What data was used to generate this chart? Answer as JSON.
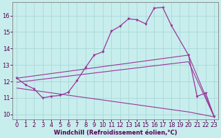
{
  "xlabel": "Windchill (Refroidissement éolien,°C)",
  "background_color": "#c8eded",
  "grid_color": "#a8d8d8",
  "line_color": "#993399",
  "xlim": [
    -0.5,
    23.5
  ],
  "ylim": [
    9.7,
    16.8
  ],
  "yticks": [
    10,
    11,
    12,
    13,
    14,
    15,
    16
  ],
  "xticks": [
    0,
    1,
    2,
    3,
    4,
    5,
    6,
    7,
    8,
    9,
    10,
    11,
    12,
    13,
    14,
    15,
    16,
    17,
    18,
    19,
    20,
    21,
    22,
    23
  ],
  "line1_x": [
    0,
    1,
    2,
    3,
    4,
    5,
    6,
    7,
    8,
    9,
    10,
    11,
    12,
    13,
    14,
    15,
    16,
    17,
    18,
    20,
    21,
    22,
    23
  ],
  "line1_y": [
    12.2,
    11.8,
    11.55,
    11.0,
    11.1,
    11.15,
    11.35,
    12.05,
    12.85,
    13.6,
    13.8,
    15.05,
    15.35,
    15.8,
    15.75,
    15.5,
    16.45,
    16.5,
    15.4,
    13.6,
    11.1,
    11.3,
    9.85
  ],
  "line2_x": [
    0,
    20,
    23
  ],
  "line2_y": [
    12.2,
    13.6,
    9.85
  ],
  "line3_x": [
    0,
    20,
    23
  ],
  "line3_y": [
    11.95,
    13.2,
    9.85
  ],
  "line4_x": [
    0,
    20,
    23
  ],
  "line4_y": [
    11.6,
    10.15,
    9.85
  ],
  "tick_fontsize": 6,
  "xlabel_fontsize": 6
}
